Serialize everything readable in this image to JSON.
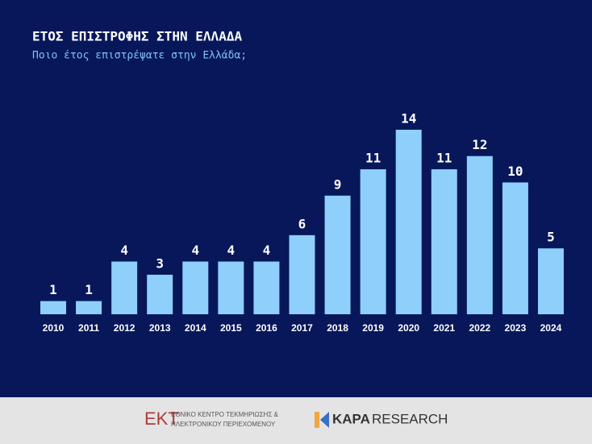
{
  "chart_data": {
    "type": "bar",
    "title": "ΕΤΟΣ ΕΠΙΣΤΡΟΦΗΣ ΣΤΗΝ ΕΛΛΑΔΑ",
    "subtitle": "Ποιο έτος επιστρέψατε στην Ελλάδα;",
    "categories": [
      "2010",
      "2011",
      "2012",
      "2013",
      "2014",
      "2015",
      "2016",
      "2017",
      "2018",
      "2019",
      "2020",
      "2021",
      "2022",
      "2023",
      "2024"
    ],
    "values": [
      1,
      1,
      4,
      3,
      4,
      4,
      4,
      6,
      9,
      11,
      14,
      11,
      12,
      10,
      5
    ],
    "color": "#8ecffc"
  },
  "footer": {
    "ekt_logo": "ΕΚΤ",
    "ekt_line1": "ΕΘΝΙΚΟ ΚΕΝΤΡΟ ΤΕΚΜΗΡΙΩΣΗΣ &",
    "ekt_line2": "ΗΛΕΚΤΡΟΝΙΚΟΥ ΠΕΡΙΕΧΟΜΕΝΟΥ",
    "kapa": "KAPA",
    "research": "RESEARCH"
  }
}
